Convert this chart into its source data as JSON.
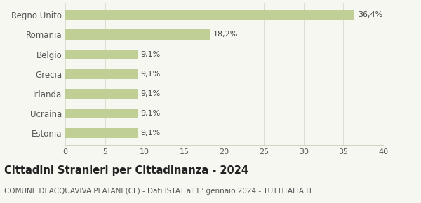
{
  "categories": [
    "Estonia",
    "Ucraina",
    "Irlanda",
    "Grecia",
    "Belgio",
    "Romania",
    "Regno Unito"
  ],
  "values": [
    9.1,
    9.1,
    9.1,
    9.1,
    9.1,
    18.2,
    36.4
  ],
  "labels": [
    "9,1%",
    "9,1%",
    "9,1%",
    "9,1%",
    "9,1%",
    "18,2%",
    "36,4%"
  ],
  "bar_color": "#bfcf96",
  "background_color": "#f7f7f2",
  "title": "Cittadini Stranieri per Cittadinanza - 2024",
  "subtitle": "COMUNE DI ACQUAVIVA PLATANI (CL) - Dati ISTAT al 1° gennaio 2024 - TUTTITALIA.IT",
  "xlim": [
    0,
    40
  ],
  "xticks": [
    0,
    5,
    10,
    15,
    20,
    25,
    30,
    35,
    40
  ],
  "title_fontsize": 10.5,
  "subtitle_fontsize": 7.5,
  "label_fontsize": 8,
  "tick_fontsize": 8,
  "ytick_fontsize": 8.5
}
